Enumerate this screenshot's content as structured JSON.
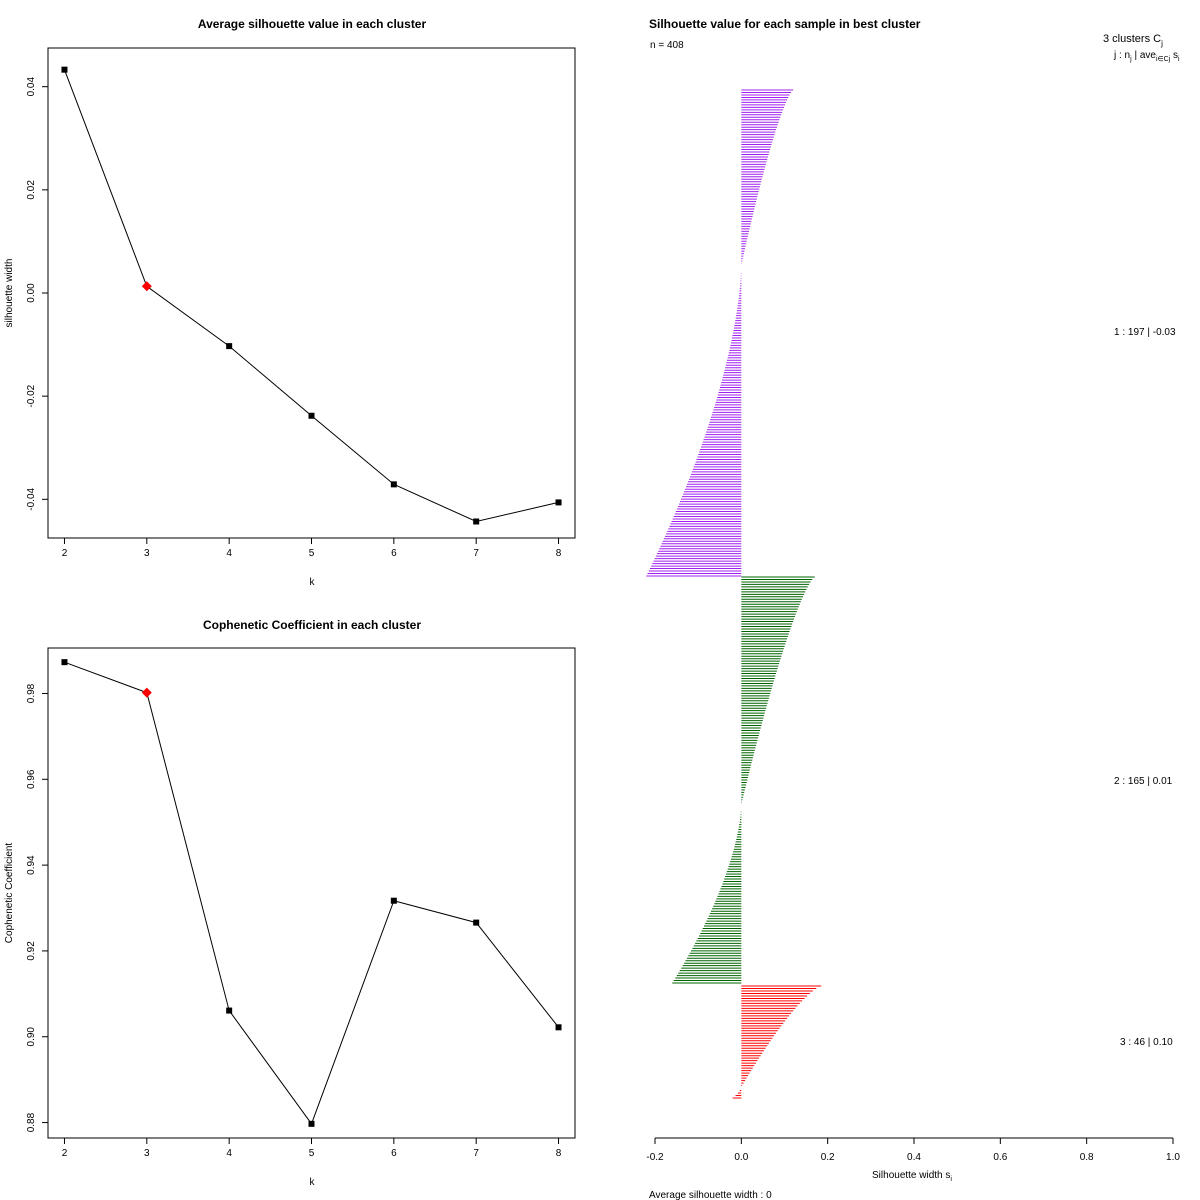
{
  "chart_data": [
    {
      "id": "sil",
      "type": "line",
      "title": "Average silhouette value in each cluster",
      "xlabel": "k",
      "ylabel": "silhouette width",
      "x": [
        2,
        3,
        4,
        5,
        6,
        7,
        8
      ],
      "values": [
        0.0433,
        0.0013,
        -0.0103,
        -0.0238,
        -0.0371,
        -0.0443,
        -0.0406
      ],
      "highlight_index": 1,
      "highlight_color": "#ff0000",
      "xlim": [
        1.8,
        8.2
      ],
      "ylim": [
        -0.0475,
        0.0475
      ],
      "xticks": [
        2,
        3,
        4,
        5,
        6,
        7,
        8
      ],
      "yticks": [
        -0.04,
        -0.02,
        0.0,
        0.02,
        0.04
      ],
      "ytick_labels": [
        "-0.04",
        "-0.02",
        "0.00",
        "0.02",
        "0.04"
      ]
    },
    {
      "id": "coph",
      "type": "line",
      "title": "Cophenetic Coefficient in each cluster",
      "xlabel": "k",
      "ylabel": "Cophenetic Coefficient",
      "x": [
        2,
        3,
        4,
        5,
        6,
        7,
        8
      ],
      "values": [
        0.9873,
        0.9802,
        0.9061,
        0.8797,
        0.9317,
        0.9266,
        0.9022
      ],
      "highlight_index": 1,
      "highlight_color": "#ff0000",
      "xlim": [
        1.8,
        8.2
      ],
      "ylim": [
        0.8764,
        0.9906
      ],
      "xticks": [
        2,
        3,
        4,
        5,
        6,
        7,
        8
      ],
      "yticks": [
        0.88,
        0.9,
        0.92,
        0.94,
        0.96,
        0.98
      ],
      "ytick_labels": [
        "0.88",
        "0.90",
        "0.92",
        "0.94",
        "0.96",
        "0.98"
      ]
    },
    {
      "id": "silplot",
      "type": "bar",
      "title": "Silhouette value for each sample in best cluster",
      "n_label": "n = 408",
      "xlabel_base": "Silhouette width s",
      "xlabel_sub": "i",
      "xlim": [
        -0.2,
        1.0
      ],
      "xticks": [
        -0.2,
        0.0,
        0.2,
        0.4,
        0.6,
        0.8,
        1.0
      ],
      "xtick_labels": [
        "-0.2",
        "0.0",
        "0.2",
        "0.4",
        "0.6",
        "0.8",
        "1.0"
      ],
      "header_line1": "3 clusters C",
      "header_line1_sub": "j",
      "header_line2": "j : n",
      "header_line2_sub": "j",
      "header_line2_rest": " | ave",
      "header_line2_sub2": "i∈Cj",
      "header_line2_tail": " s",
      "header_line2_sub3": "i",
      "average_label": "Average silhouette width :  0",
      "clusters": [
        {
          "label": "1 :   197  |  -0.03",
          "n": 197,
          "ave": -0.03,
          "color": "#a020f0",
          "start": 0.12,
          "min": -0.22,
          "cross": 0.36
        },
        {
          "label": "2 :   165  |  0.01",
          "n": 165,
          "ave": 0.01,
          "color": "#006400",
          "start": 0.17,
          "min": -0.16,
          "cross": 0.56
        },
        {
          "label": "3 :   46  |  0.10",
          "n": 46,
          "ave": 0.1,
          "color": "#ff0000",
          "start": 0.185,
          "min": -0.02,
          "cross": 0.9
        }
      ]
    }
  ]
}
